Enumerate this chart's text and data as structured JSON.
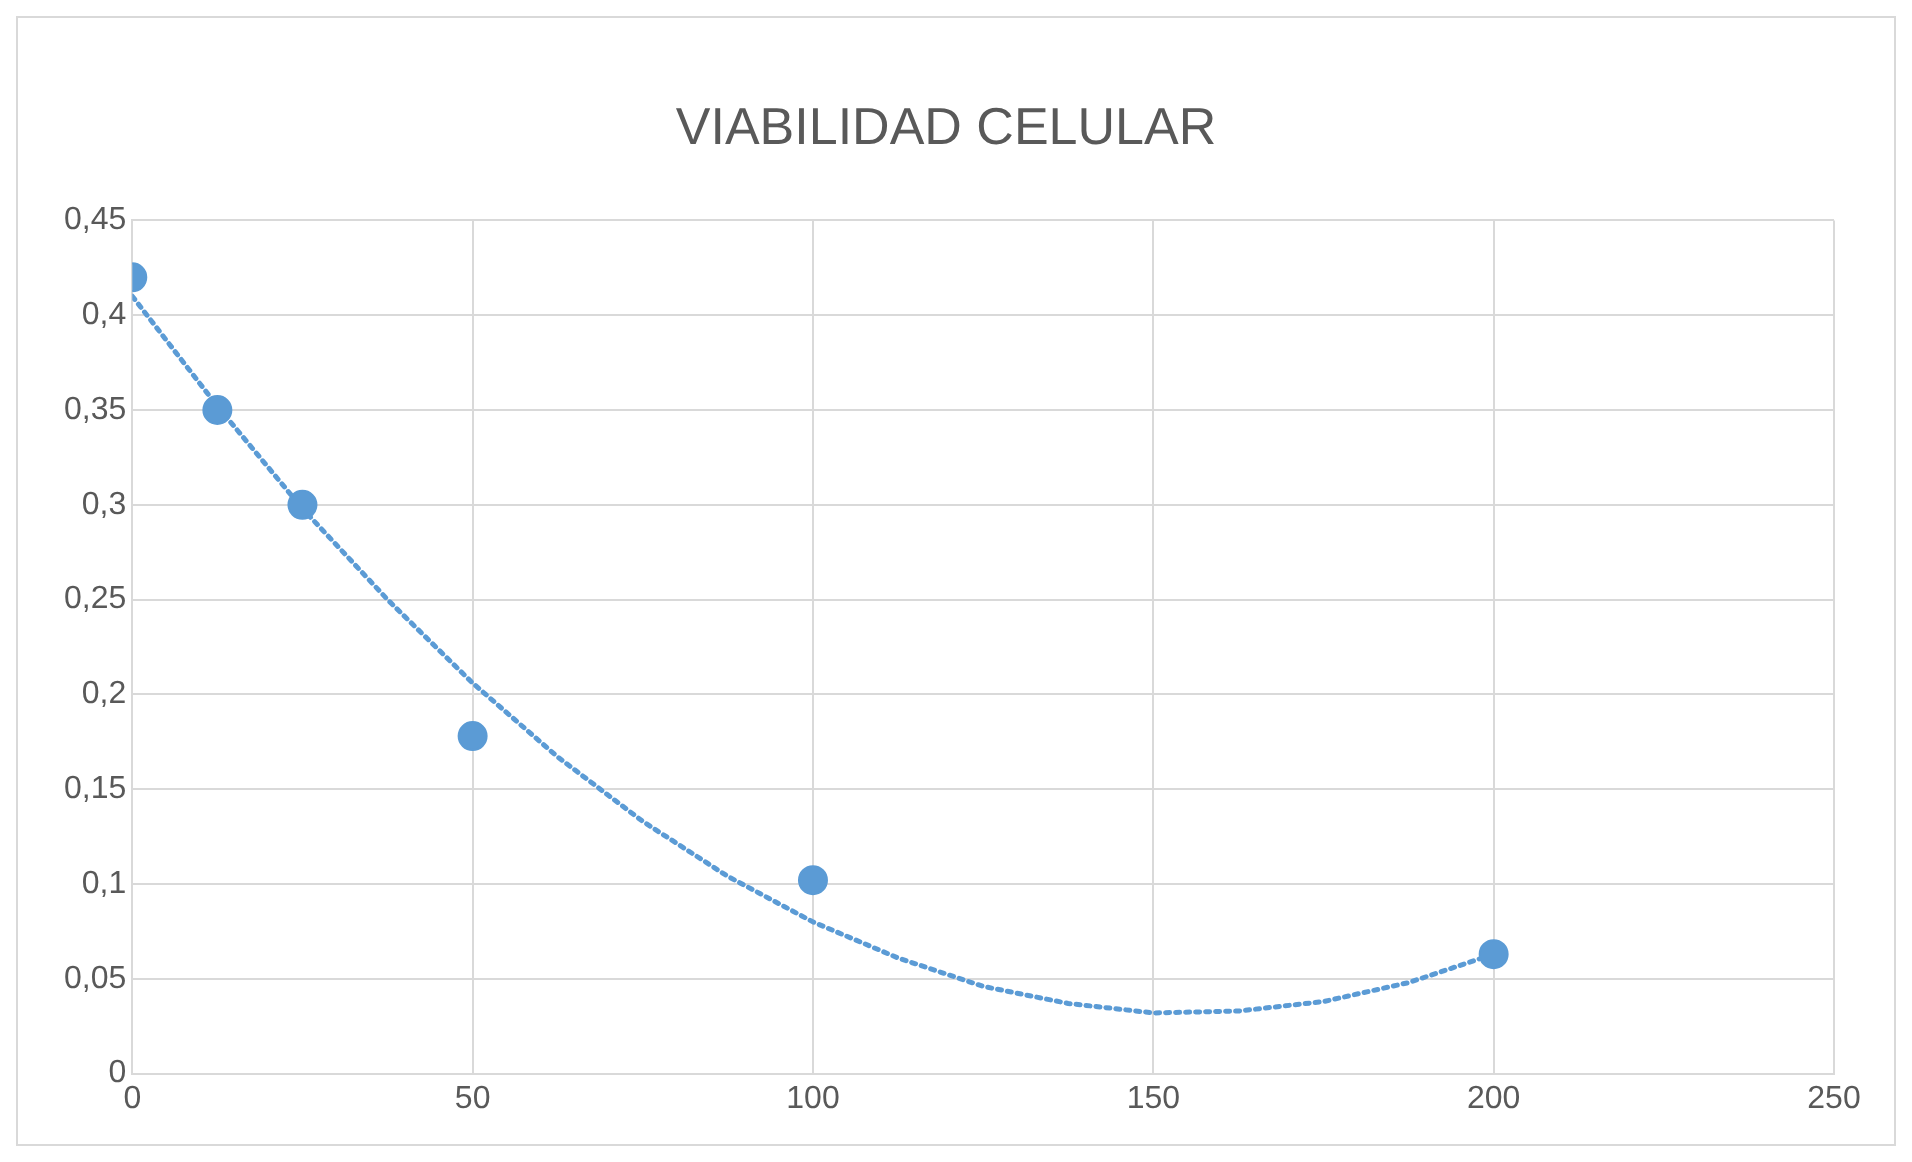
{
  "chart_data": {
    "type": "scatter",
    "title": "VIABILIDAD CELULAR",
    "xlim": [
      0,
      250
    ],
    "xticks": [
      0,
      50,
      100,
      150,
      200,
      250
    ],
    "ylim": [
      0,
      0.45
    ],
    "yticks": [
      0,
      {
        "value": 0.05,
        "label": "0,05"
      },
      {
        "value": 0.1,
        "label": "0,1"
      },
      {
        "value": 0.15,
        "label": "0,15"
      },
      {
        "value": 0.2,
        "label": "0,2"
      },
      {
        "value": 0.25,
        "label": "0,25"
      },
      {
        "value": 0.3,
        "label": "0,3"
      },
      {
        "value": 0.35,
        "label": "0,35"
      },
      {
        "value": 0.4,
        "label": "0,4"
      },
      {
        "value": 0.45,
        "label": "0,45"
      }
    ],
    "grid": true,
    "legend": false,
    "series": [
      {
        "type": "scatter",
        "color": "#5b9bd5",
        "marker": "circle",
        "x": [
          0,
          12.5,
          25,
          50,
          100,
          200
        ],
        "values": [
          0.42,
          0.35,
          0.3,
          0.178,
          0.102,
          0.063
        ]
      },
      {
        "type": "line",
        "color": "#5b9bd5",
        "marker": "none",
        "line_style": "dotted",
        "x": [
          0,
          12.5,
          25,
          37.5,
          50,
          62.5,
          75,
          87.5,
          100,
          112.5,
          125,
          137.5,
          150,
          162.5,
          175,
          187.5,
          200
        ],
        "values": [
          0.41,
          0.352,
          0.298,
          0.25,
          0.206,
          0.167,
          0.133,
          0.104,
          0.08,
          0.061,
          0.046,
          0.037,
          0.032,
          0.033,
          0.038,
          0.048,
          0.063
        ]
      }
    ]
  }
}
